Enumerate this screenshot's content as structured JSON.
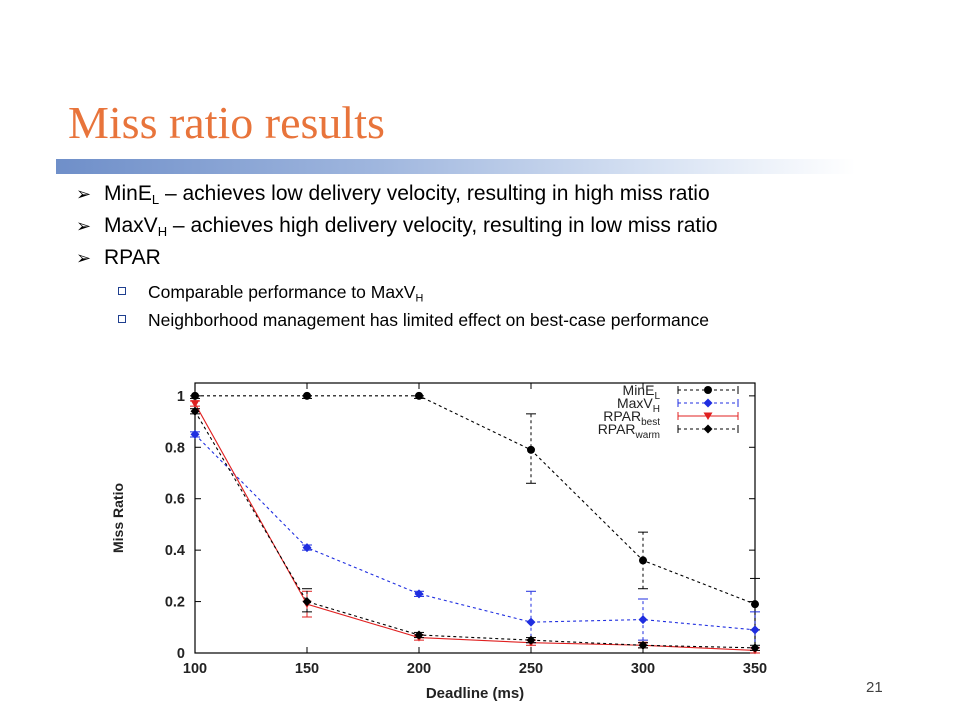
{
  "slide": {
    "title": "Miss ratio results",
    "page_number": "21",
    "bullets": [
      {
        "main": "MinE",
        "sub": "L",
        "rest": " – achieves low delivery velocity, resulting in high miss ratio"
      },
      {
        "main": "MaxV",
        "sub": "H",
        "rest": " – achieves high delivery velocity, resulting in low miss ratio"
      },
      {
        "main": "RPAR",
        "sub": "",
        "rest": ""
      }
    ],
    "subbullets": [
      {
        "main": "Comparable performance to MaxV",
        "sub": "H",
        "rest": ""
      },
      {
        "main": "Neighborhood management has limited effect on best-case performance",
        "sub": "",
        "rest": ""
      }
    ]
  },
  "chart_data": {
    "type": "line",
    "xlabel": "Deadline (ms)",
    "ylabel": "Miss Ratio",
    "x": [
      100,
      150,
      200,
      250,
      300,
      350
    ],
    "xlim": [
      100,
      350
    ],
    "ylim": [
      0,
      1.05
    ],
    "x_ticks": [
      "100",
      "150",
      "200",
      "250",
      "300",
      "350"
    ],
    "y_ticks": [
      "0",
      "0.2",
      "0.4",
      "0.6",
      "0.8",
      "1"
    ],
    "grid": false,
    "legend_position": "top-right",
    "series": [
      {
        "name": "MinE",
        "name_sub": "L",
        "color": "#000000",
        "marker": "circle",
        "dash": "3,3",
        "values": [
          1.0,
          1.0,
          1.0,
          0.79,
          0.36,
          0.19
        ],
        "err_low": [
          0.99,
          0.99,
          0.99,
          0.66,
          0.25,
          0.09
        ],
        "err_high": [
          1.0,
          1.0,
          1.0,
          0.93,
          0.47,
          0.29
        ]
      },
      {
        "name": "MaxV",
        "name_sub": "H",
        "color": "#1f2ee0",
        "marker": "diamond",
        "dash": "3,3",
        "values": [
          0.85,
          0.41,
          0.23,
          0.12,
          0.13,
          0.09
        ],
        "err_low": [
          0.84,
          0.4,
          0.22,
          0.04,
          0.05,
          0.02
        ],
        "err_high": [
          0.86,
          0.42,
          0.24,
          0.24,
          0.21,
          0.16
        ]
      },
      {
        "name": "RPAR",
        "name_sub": "best",
        "color": "#e02020",
        "marker": "triangle-down",
        "dash": "",
        "values": [
          0.97,
          0.19,
          0.06,
          0.04,
          0.03,
          0.01
        ],
        "err_low": [
          0.96,
          0.14,
          0.05,
          0.03,
          0.02,
          0.0
        ],
        "err_high": [
          0.98,
          0.24,
          0.07,
          0.05,
          0.04,
          0.02
        ]
      },
      {
        "name": "RPAR",
        "name_sub": "warm",
        "color": "#000000",
        "marker": "diamond",
        "dash": "3,3",
        "values": [
          0.94,
          0.2,
          0.07,
          0.05,
          0.03,
          0.02
        ],
        "err_low": [
          0.93,
          0.16,
          0.06,
          0.04,
          0.02,
          0.01
        ],
        "err_high": [
          0.95,
          0.25,
          0.08,
          0.06,
          0.04,
          0.03
        ]
      }
    ]
  }
}
